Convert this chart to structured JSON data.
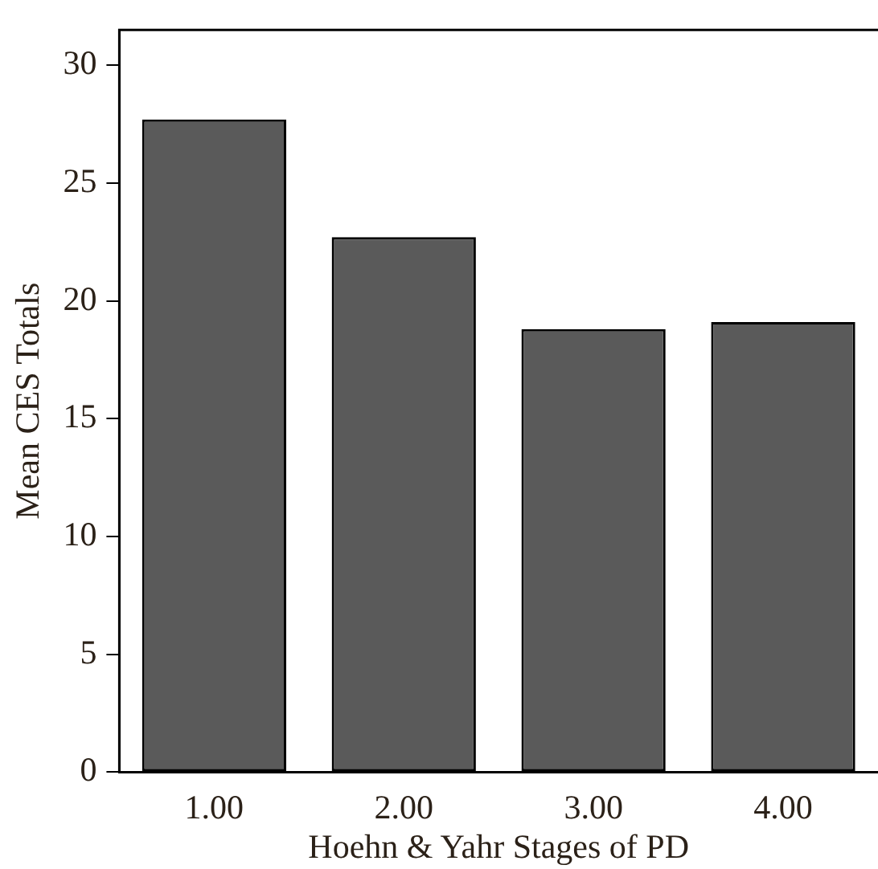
{
  "chart_data": {
    "type": "bar",
    "xlabel": "Hoehn & Yahr Stages of PD",
    "ylabel": "Mean CES Totals",
    "categories": [
      "1.00",
      "2.00",
      "3.00",
      "4.00"
    ],
    "values": [
      27.7,
      22.7,
      18.8,
      19.1
    ],
    "color": "#5a5a5a",
    "ylim": [
      0,
      31.5
    ],
    "yticks": [
      0,
      5,
      10,
      15,
      20,
      25,
      30
    ],
    "grid": false,
    "legend": false
  }
}
